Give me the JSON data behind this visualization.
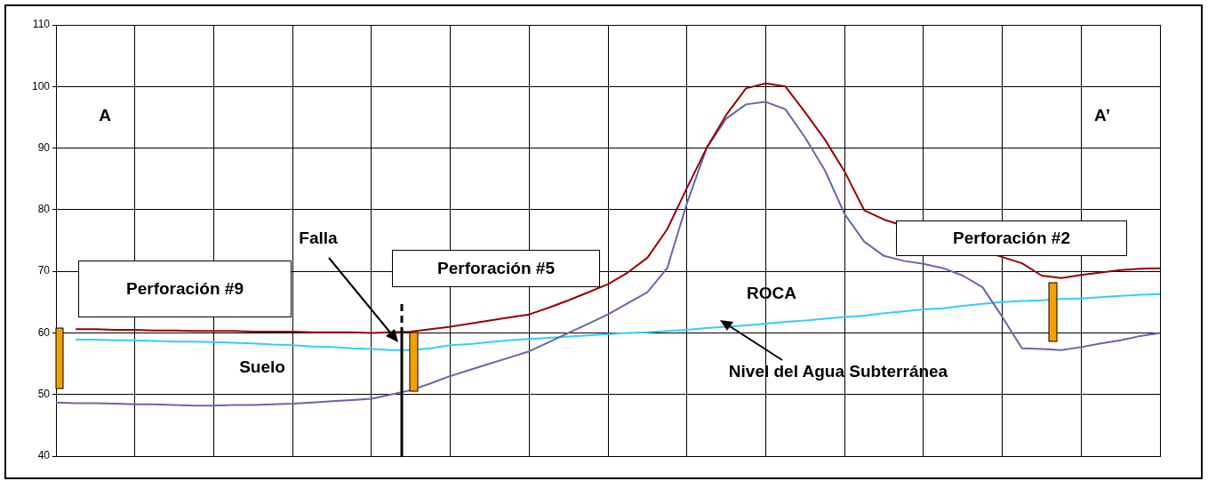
{
  "chart_data": {
    "type": "line",
    "ylim": [
      40,
      110
    ],
    "yticks": [
      40,
      50,
      60,
      70,
      80,
      90,
      100,
      110
    ],
    "categories": [
      null,
      null,
      null,
      null,
      null,
      null,
      null,
      null,
      null,
      null,
      null,
      null,
      null,
      null,
      null,
      null,
      null,
      null,
      null,
      null,
      null,
      null,
      null,
      null,
      null,
      null,
      null,
      null,
      null,
      null,
      null,
      null,
      null,
      null,
      null,
      null,
      null,
      null,
      null,
      null,
      null,
      null,
      null,
      null,
      null,
      null,
      null,
      null,
      null,
      null,
      null,
      null,
      null,
      null,
      null,
      null,
      null
    ],
    "tick_labels": "y",
    "grid": true,
    "legend": false,
    "marker": "none",
    "series": [
      {
        "color": "#990000",
        "values": [
          null,
          60.6,
          60.6,
          60.5,
          60.5,
          60.4,
          60.4,
          60.3,
          60.3,
          60.3,
          60.2,
          60.2,
          60.2,
          60.1,
          60.1,
          60.1,
          60,
          null,
          60.2,
          60.6,
          61,
          61.5,
          62,
          62.5,
          63,
          64.1,
          65.3,
          66.6,
          67.9,
          69.8,
          72.2,
          76.8,
          83.5,
          90,
          95.4,
          99.7,
          100.5,
          100,
          95.8,
          91.4,
          86.2,
          79.9,
          78.4,
          null,
          null,
          null,
          null,
          null,
          null,
          71.3,
          69.3,
          68.9,
          69.4,
          69.8,
          70.2,
          70.4,
          70.5
        ]
      },
      {
        "color": "#6666aa",
        "values": [
          48.7,
          48.6,
          48.6,
          48.5,
          48.4,
          48.4,
          48.3,
          48.2,
          48.2,
          48.3,
          48.3,
          48.4,
          48.5,
          48.7,
          48.9,
          49.1,
          49.3,
          50,
          50.7,
          51.8,
          53,
          54,
          55,
          56,
          57,
          58.5,
          60,
          61.5,
          63,
          64.8,
          66.6,
          70.5,
          81,
          90,
          94.8,
          97.1,
          97.5,
          96.3,
          91.7,
          86.4,
          79.3,
          74.8,
          72.5,
          71.7,
          71.2,
          70.5,
          69.3,
          67.4,
          62.6,
          57.5,
          57.4,
          57.2,
          57.7,
          58.3,
          58.8,
          59.5,
          60
        ]
      },
      {
        "color": "#33ccff",
        "values": [
          null,
          58.9,
          58.9,
          58.8,
          58.8,
          58.7,
          58.6,
          58.6,
          58.5,
          58.4,
          58.3,
          58.1,
          58,
          57.8,
          57.7,
          57.5,
          57.4,
          57.2,
          57.2,
          57.5,
          58,
          58.2,
          58.5,
          58.8,
          59,
          59.2,
          59.4,
          59.6,
          59.8,
          60,
          60.1,
          60.3,
          60.5,
          60.8,
          61,
          61.2,
          61.5,
          61.8,
          62,
          62.3,
          62.6,
          62.8,
          63.2,
          63.5,
          63.8,
          64,
          64.4,
          64.7,
          65,
          65.2,
          65.3,
          65.5,
          65.6,
          65.8,
          66,
          66.2,
          66.3
        ]
      }
    ],
    "annotations": [
      "A",
      "A’",
      "Falla",
      "Perforación #9",
      "Perforación #5",
      "Perforación #2",
      "ROCA",
      "Suelo",
      "Nivel del Agua Subterránea"
    ]
  }
}
